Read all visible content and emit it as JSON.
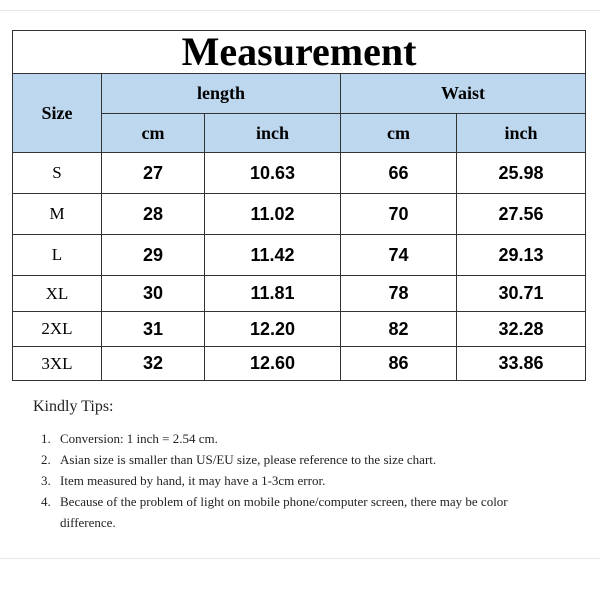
{
  "title": "Measurement",
  "headers": {
    "size": "Size",
    "length": "length",
    "waist": "Waist",
    "units": [
      "cm",
      "inch",
      "cm",
      "inch"
    ]
  },
  "rows": [
    {
      "size": "S",
      "length_cm": "27",
      "length_inch": "10.63",
      "waist_cm": "66",
      "waist_inch": "25.98"
    },
    {
      "size": "M",
      "length_cm": "28",
      "length_inch": "11.02",
      "waist_cm": "70",
      "waist_inch": "27.56"
    },
    {
      "size": "L",
      "length_cm": "29",
      "length_inch": "11.42",
      "waist_cm": "74",
      "waist_inch": "29.13"
    },
    {
      "size": "XL",
      "length_cm": "30",
      "length_inch": "11.81",
      "waist_cm": "78",
      "waist_inch": "30.71"
    },
    {
      "size": "2XL",
      "length_cm": "31",
      "length_inch": "12.20",
      "waist_cm": "82",
      "waist_inch": "32.28"
    },
    {
      "size": "3XL",
      "length_cm": "32",
      "length_inch": "12.60",
      "waist_cm": "86",
      "waist_inch": "33.86"
    }
  ],
  "tips": {
    "heading": "Kindly Tips:",
    "items": [
      "Conversion: 1 inch = 2.54 cm.",
      "Asian size is smaller than US/EU size, please reference to the size chart.",
      "Item measured by hand, it may have a 1-3cm error.",
      "Because of the problem of light on mobile phone/computer screen, there may be color difference."
    ]
  },
  "colors": {
    "header_bg": "#bdd7ee",
    "border": "#333333"
  }
}
